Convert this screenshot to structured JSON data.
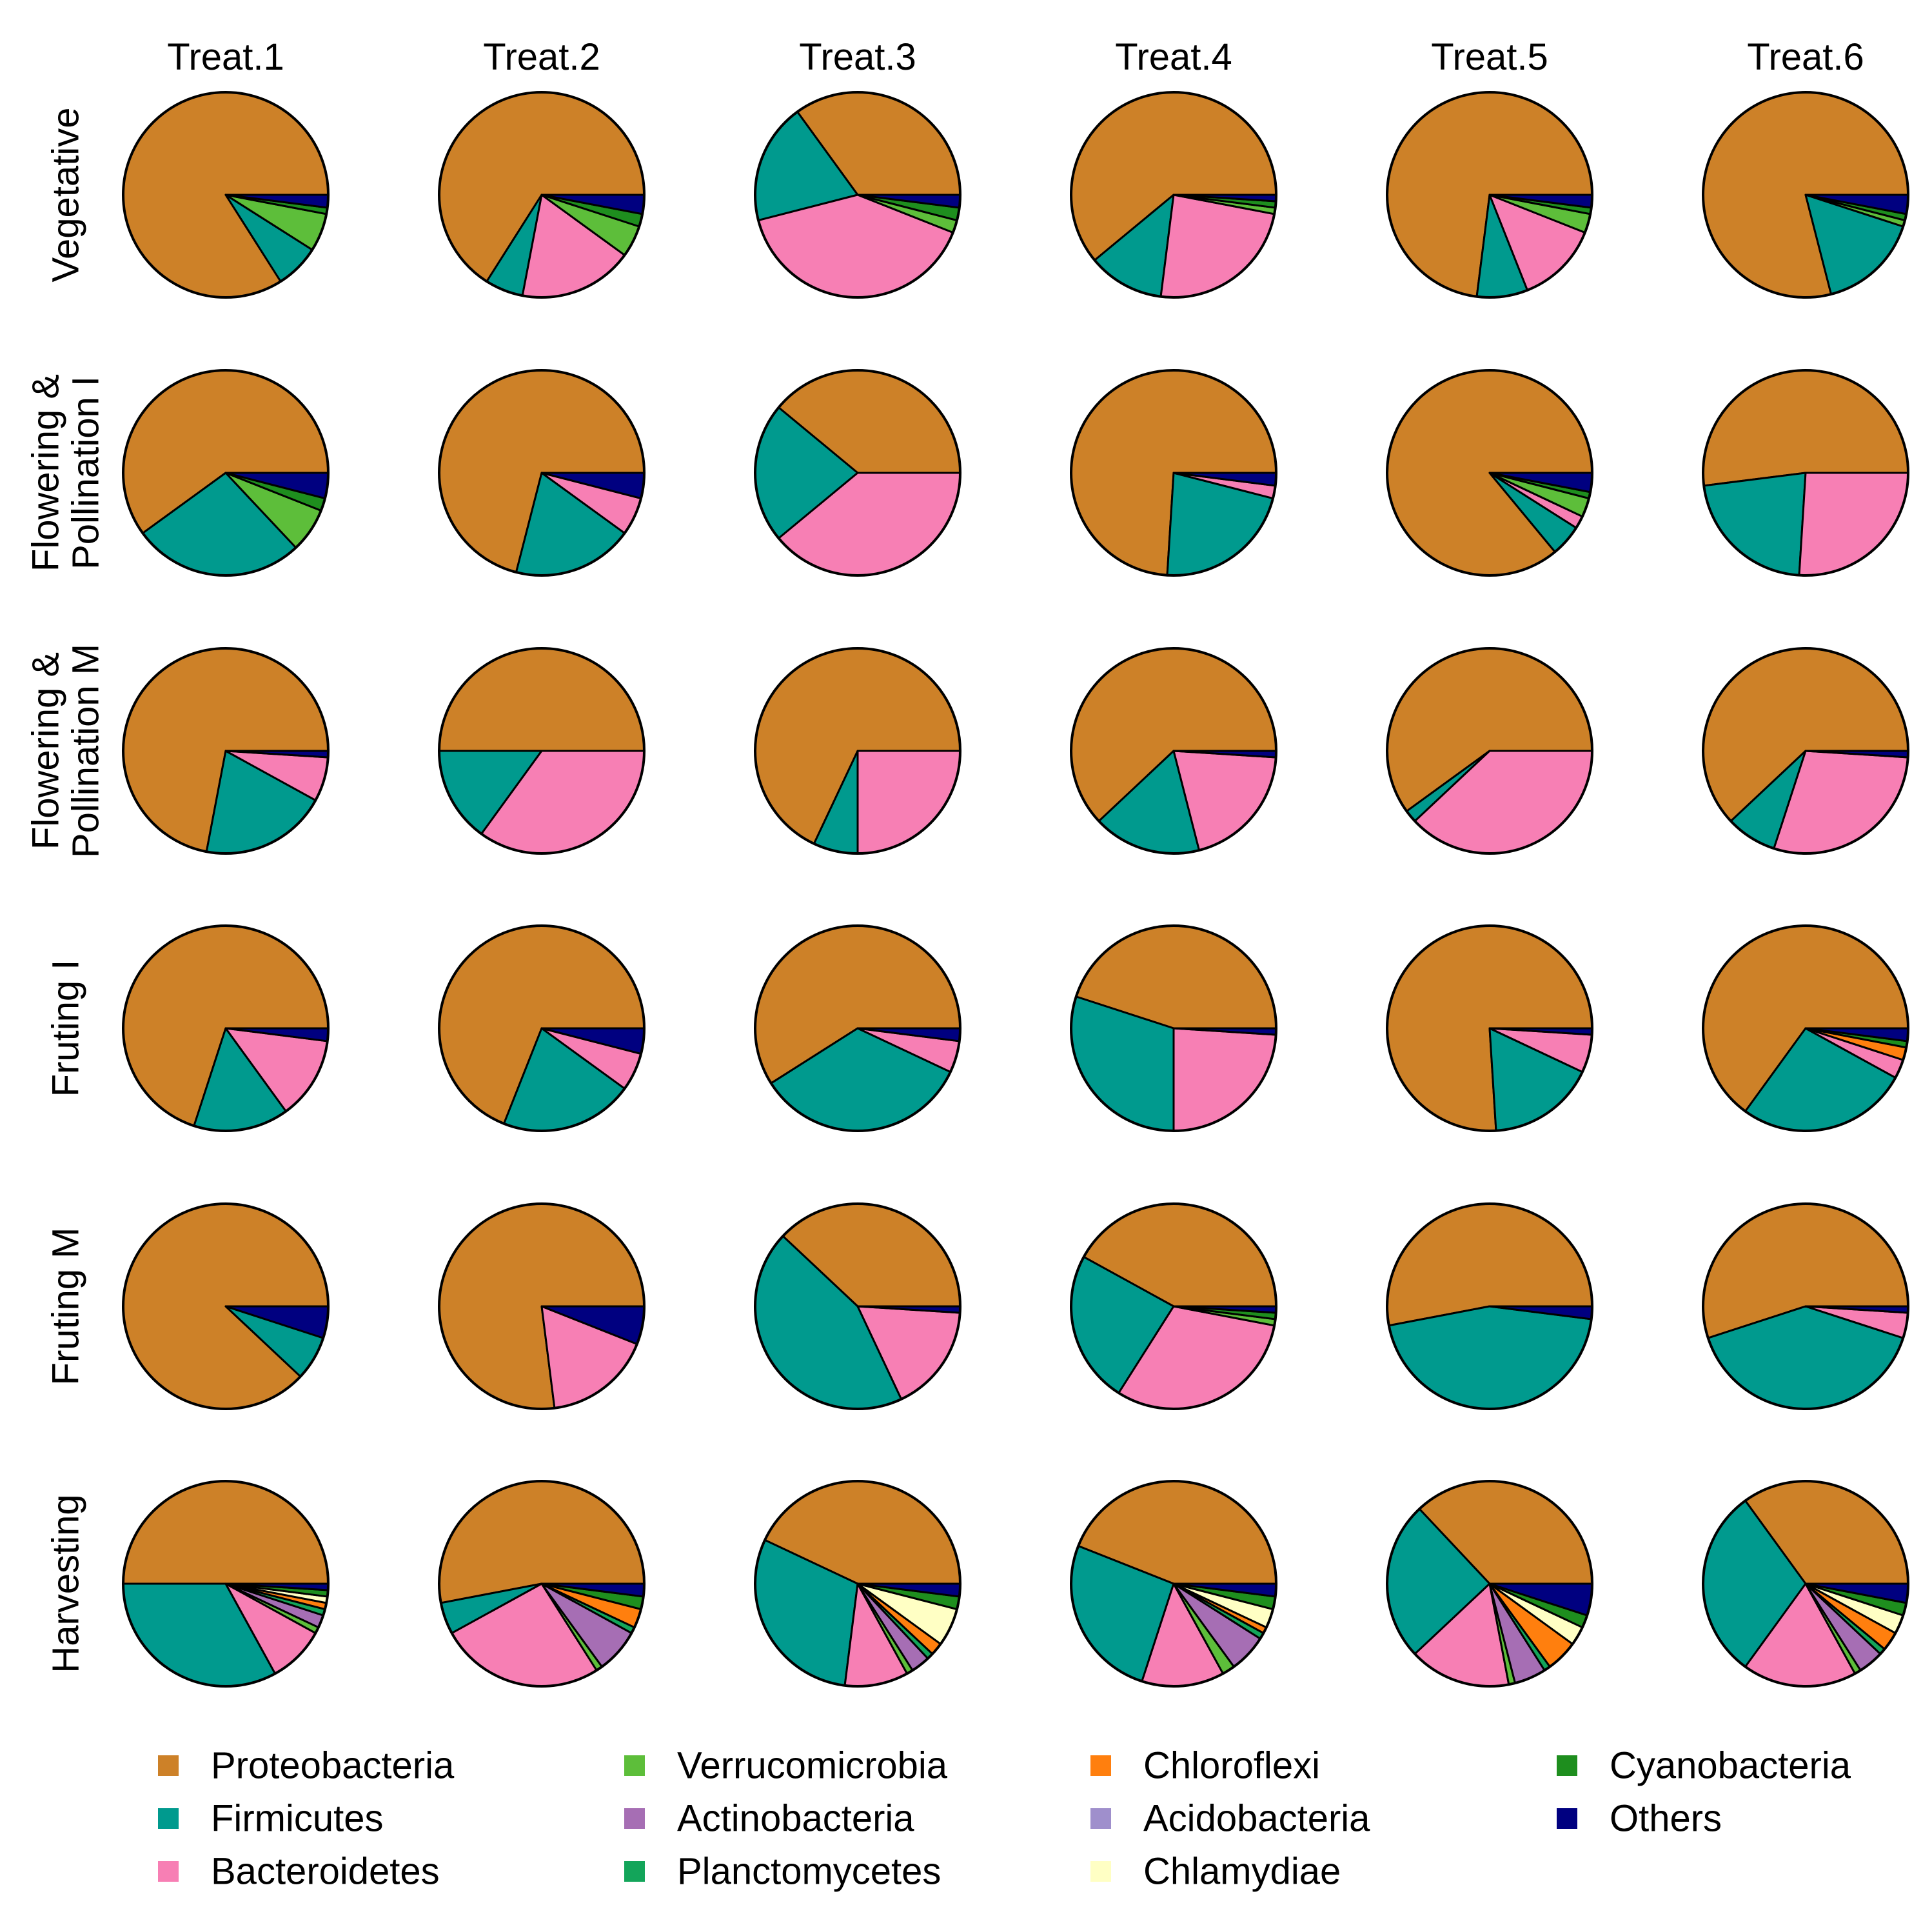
{
  "chart_data": {
    "type": "pie",
    "layout": "grid",
    "columns": [
      "Treat.1",
      "Treat.2",
      "Treat.3",
      "Treat.4",
      "Treat.5",
      "Treat.6"
    ],
    "rows": [
      {
        "lines": [
          "Vegetative"
        ]
      },
      {
        "lines": [
          "Flowering &",
          "Pollination I"
        ]
      },
      {
        "lines": [
          "Flowering &",
          "Pollination M"
        ]
      },
      {
        "lines": [
          "Fruting I"
        ]
      },
      {
        "lines": [
          "Fruting M"
        ]
      },
      {
        "lines": [
          "Harvesting"
        ]
      }
    ],
    "categories": [
      "Proteobacteria",
      "Firmicutes",
      "Bacteroidetes",
      "Verrucomicrobia",
      "Actinobacteria",
      "Planctomycetes",
      "Chloroflexi",
      "Acidobacteria",
      "Chlamydiae",
      "Cyanobacteria",
      "Others"
    ],
    "colors": {
      "Proteobacteria": "#CD8128",
      "Firmicutes": "#009A8E",
      "Bacteroidetes": "#F77FB4",
      "Verrucomicrobia": "#5DBE3A",
      "Actinobacteria": "#A66EB4",
      "Planctomycetes": "#13A55A",
      "Chloroflexi": "#FF7F0E",
      "Acidobacteria": "#9F8FCC",
      "Chlamydiae": "#FFFFC4",
      "Cyanobacteria": "#1E8E1E",
      "Others": "#000080"
    },
    "values_unit": "percent (estimated from wedge angles; counterclockwise from 3 o'clock)",
    "values": [
      [
        [
          84,
          7,
          0,
          6,
          0,
          0,
          0,
          0,
          0,
          1,
          2
        ],
        [
          66,
          6,
          18,
          5,
          0,
          0,
          0,
          0,
          0,
          2,
          3
        ],
        [
          35,
          19,
          40,
          2,
          0,
          0,
          0,
          0,
          0,
          2,
          2
        ],
        [
          61,
          12,
          24,
          1,
          0,
          0,
          0,
          0,
          0,
          1,
          1
        ],
        [
          73,
          8,
          13,
          3,
          0,
          0,
          0,
          0,
          0,
          1,
          2
        ],
        [
          79,
          16,
          0,
          1,
          0,
          0,
          0,
          0,
          0,
          1,
          3
        ]
      ],
      [
        [
          60,
          27,
          0,
          7,
          0,
          0,
          0,
          0,
          0,
          2,
          4
        ],
        [
          71,
          19,
          6,
          0,
          0,
          0,
          0,
          0,
          0,
          0,
          4
        ],
        [
          39,
          22,
          39,
          0,
          0,
          0,
          0,
          0,
          0,
          0,
          0
        ],
        [
          74,
          22,
          2,
          0,
          0,
          0,
          0,
          0,
          0,
          0,
          2
        ],
        [
          86,
          5,
          2,
          3,
          0,
          0,
          0,
          0,
          0,
          1,
          3
        ],
        [
          52,
          22,
          26,
          0,
          0,
          0,
          0,
          0,
          0,
          0,
          0
        ]
      ],
      [
        [
          72,
          20,
          7,
          0,
          0,
          0,
          0,
          0,
          0,
          0,
          1
        ],
        [
          50,
          15,
          35,
          0,
          0,
          0,
          0,
          0,
          0,
          0,
          0
        ],
        [
          68,
          7,
          25,
          0,
          0,
          0,
          0,
          0,
          0,
          0,
          0
        ],
        [
          62,
          17,
          20,
          0,
          0,
          0,
          0,
          0,
          0,
          0,
          1
        ],
        [
          60,
          2,
          38,
          0,
          0,
          0,
          0,
          0,
          0,
          0,
          0
        ],
        [
          62,
          8,
          29,
          0,
          0,
          0,
          0,
          0,
          0,
          0,
          1
        ]
      ],
      [
        [
          70,
          15,
          13,
          0,
          0,
          0,
          0,
          0,
          0,
          0,
          2
        ],
        [
          69,
          21,
          6,
          0,
          0,
          0,
          0,
          0,
          0,
          0,
          4
        ],
        [
          59,
          34,
          5,
          0,
          0,
          0,
          0,
          0,
          0,
          0,
          2
        ],
        [
          45,
          30,
          24,
          0,
          0,
          0,
          0,
          0,
          0,
          0,
          1
        ],
        [
          76,
          17,
          6,
          0,
          0,
          0,
          0,
          0,
          0,
          0,
          1
        ],
        [
          65,
          27,
          3,
          0,
          0,
          0,
          2,
          0,
          0,
          1,
          2
        ]
      ],
      [
        [
          88,
          7,
          0,
          0,
          0,
          0,
          0,
          0,
          0,
          0,
          5
        ],
        [
          77,
          0,
          17,
          0,
          0,
          0,
          0,
          0,
          0,
          0,
          6
        ],
        [
          38,
          44,
          17,
          0,
          0,
          0,
          0,
          0,
          0,
          0,
          1
        ],
        [
          42,
          24,
          31,
          1,
          0,
          0,
          0,
          0,
          0,
          1,
          1
        ],
        [
          53,
          45,
          0,
          0,
          0,
          0,
          0,
          0,
          0,
          0,
          2
        ],
        [
          55,
          40,
          4,
          0,
          0,
          0,
          0,
          0,
          0,
          0,
          1
        ]
      ],
      [
        [
          50,
          33,
          9,
          1,
          2,
          1,
          1,
          0,
          1,
          1,
          1
        ],
        [
          53,
          5,
          26,
          1,
          7,
          1,
          3,
          0,
          0,
          2,
          2
        ],
        [
          43,
          30,
          10,
          1,
          3,
          1,
          2,
          0,
          6,
          2,
          2
        ],
        [
          44,
          26,
          13,
          2,
          6,
          1,
          1,
          0,
          3,
          2,
          2
        ],
        [
          37,
          25,
          16,
          1,
          5,
          1,
          5,
          0,
          3,
          2,
          5
        ],
        [
          35,
          30,
          18,
          1,
          4,
          1,
          3,
          0,
          3,
          2,
          3
        ]
      ]
    ],
    "legend": {
      "position": "bottom",
      "columns": 4
    }
  }
}
